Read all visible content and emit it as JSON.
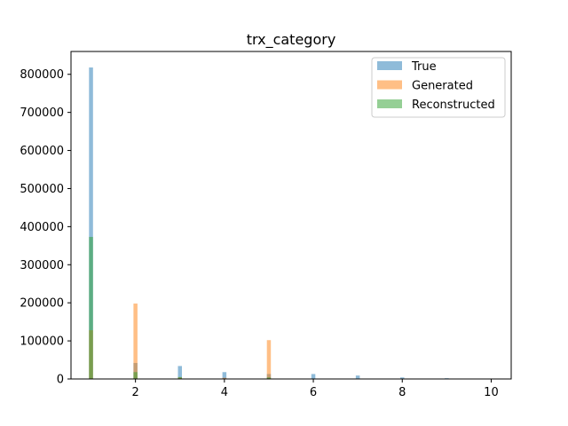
{
  "chart_data": {
    "type": "bar",
    "title": "trx_category",
    "xlabel": "",
    "ylabel": "",
    "xlim": [
      0.55,
      10.45
    ],
    "ylim": [
      0,
      860000
    ],
    "xticks": [
      2,
      4,
      6,
      8,
      10
    ],
    "xtick_labels": [
      "2",
      "4",
      "6",
      "8",
      "10"
    ],
    "yticks": [
      0,
      100000,
      200000,
      300000,
      400000,
      500000,
      600000,
      700000,
      800000
    ],
    "ytick_labels": [
      "0",
      "100000",
      "200000",
      "300000",
      "400000",
      "500000",
      "600000",
      "700000",
      "800000"
    ],
    "bin_width": 0.09,
    "legend": {
      "placement": "top-right"
    },
    "series": [
      {
        "name": "True",
        "color": "#1f77b4",
        "opacity": 0.5,
        "x": [
          1,
          2,
          3,
          4,
          5,
          6,
          7,
          8,
          9
        ],
        "values": [
          818000,
          42000,
          34000,
          18000,
          13000,
          13000,
          9000,
          4000,
          2000
        ]
      },
      {
        "name": "Generated",
        "color": "#ff7f0e",
        "opacity": 0.5,
        "x": [
          1,
          2,
          3,
          4,
          5
        ],
        "values": [
          128000,
          198000,
          4000,
          3000,
          102000
        ]
      },
      {
        "name": "Reconstructed",
        "color": "#2ca02c",
        "opacity": 0.5,
        "x": [
          1,
          2,
          3,
          5
        ],
        "values": [
          373000,
          18000,
          5000,
          4000
        ]
      }
    ]
  }
}
